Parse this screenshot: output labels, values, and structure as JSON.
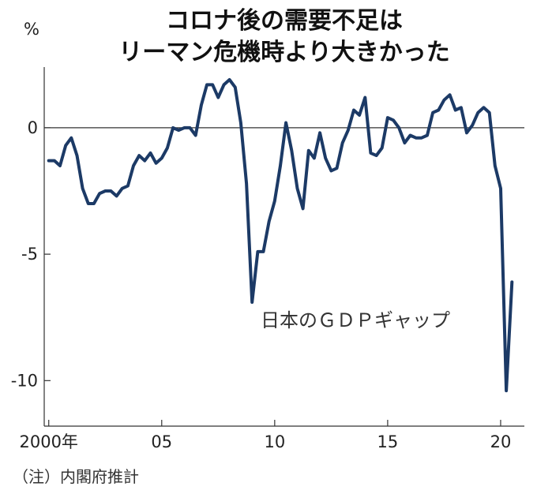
{
  "title_lines": [
    "コロナ後の需要不足は",
    "リーマン危機時より大きかった"
  ],
  "note": "（注）内閣府推計",
  "chart_data": {
    "type": "line",
    "title": "コロナ後の需要不足はリーマン危機時より大きかった",
    "y_unit_label": "%",
    "ylim": [
      -11.8,
      2.4
    ],
    "xlim": [
      1999.8,
      2021.05
    ],
    "y_ticks": [
      {
        "value": 0,
        "label": "0"
      },
      {
        "value": -5,
        "label": "-5"
      },
      {
        "value": -10,
        "label": "-10"
      }
    ],
    "x_ticks": [
      {
        "value": 2000,
        "label": "2000年"
      },
      {
        "value": 2005,
        "label": "05"
      },
      {
        "value": 2010,
        "label": "10"
      },
      {
        "value": 2015,
        "label": "15"
      },
      {
        "value": 2020,
        "label": "20"
      }
    ],
    "zero_line": true,
    "grid": false,
    "series": [
      {
        "name": "日本のＧＤＰギャップ",
        "color": "#1c3a66",
        "points": [
          [
            2000.0,
            -1.3
          ],
          [
            2000.25,
            -1.3
          ],
          [
            2000.5,
            -1.5
          ],
          [
            2000.75,
            -0.7
          ],
          [
            2001.0,
            -0.4
          ],
          [
            2001.25,
            -1.1
          ],
          [
            2001.5,
            -2.4
          ],
          [
            2001.75,
            -3.0
          ],
          [
            2002.0,
            -3.0
          ],
          [
            2002.25,
            -2.6
          ],
          [
            2002.5,
            -2.5
          ],
          [
            2002.75,
            -2.5
          ],
          [
            2003.0,
            -2.7
          ],
          [
            2003.25,
            -2.4
          ],
          [
            2003.5,
            -2.3
          ],
          [
            2003.75,
            -1.5
          ],
          [
            2004.0,
            -1.1
          ],
          [
            2004.25,
            -1.3
          ],
          [
            2004.5,
            -1.0
          ],
          [
            2004.75,
            -1.4
          ],
          [
            2005.0,
            -1.2
          ],
          [
            2005.25,
            -0.8
          ],
          [
            2005.5,
            0.0
          ],
          [
            2005.75,
            -0.1
          ],
          [
            2006.0,
            0.0
          ],
          [
            2006.25,
            0.0
          ],
          [
            2006.5,
            -0.3
          ],
          [
            2006.75,
            0.9
          ],
          [
            2007.0,
            1.7
          ],
          [
            2007.25,
            1.7
          ],
          [
            2007.5,
            1.2
          ],
          [
            2007.75,
            1.7
          ],
          [
            2008.0,
            1.9
          ],
          [
            2008.25,
            1.6
          ],
          [
            2008.5,
            0.2
          ],
          [
            2008.75,
            -2.2
          ],
          [
            2009.0,
            -6.9
          ],
          [
            2009.25,
            -4.9
          ],
          [
            2009.5,
            -4.9
          ],
          [
            2009.75,
            -3.7
          ],
          [
            2010.0,
            -2.9
          ],
          [
            2010.25,
            -1.5
          ],
          [
            2010.5,
            0.2
          ],
          [
            2010.75,
            -0.9
          ],
          [
            2011.0,
            -2.4
          ],
          [
            2011.25,
            -3.2
          ],
          [
            2011.5,
            -0.9
          ],
          [
            2011.75,
            -1.2
          ],
          [
            2012.0,
            -0.2
          ],
          [
            2012.25,
            -1.2
          ],
          [
            2012.5,
            -1.7
          ],
          [
            2012.75,
            -1.6
          ],
          [
            2013.0,
            -0.6
          ],
          [
            2013.25,
            -0.1
          ],
          [
            2013.5,
            0.7
          ],
          [
            2013.75,
            0.5
          ],
          [
            2014.0,
            1.2
          ],
          [
            2014.25,
            -1.0
          ],
          [
            2014.5,
            -1.1
          ],
          [
            2014.75,
            -0.8
          ],
          [
            2015.0,
            0.4
          ],
          [
            2015.25,
            0.3
          ],
          [
            2015.5,
            0.0
          ],
          [
            2015.75,
            -0.6
          ],
          [
            2016.0,
            -0.3
          ],
          [
            2016.25,
            -0.4
          ],
          [
            2016.5,
            -0.4
          ],
          [
            2016.75,
            -0.3
          ],
          [
            2017.0,
            0.6
          ],
          [
            2017.25,
            0.7
          ],
          [
            2017.5,
            1.1
          ],
          [
            2017.75,
            1.3
          ],
          [
            2018.0,
            0.7
          ],
          [
            2018.25,
            0.8
          ],
          [
            2018.5,
            -0.2
          ],
          [
            2018.75,
            0.1
          ],
          [
            2019.0,
            0.6
          ],
          [
            2019.25,
            0.8
          ],
          [
            2019.5,
            0.6
          ],
          [
            2019.75,
            -1.5
          ],
          [
            2020.0,
            -2.4
          ],
          [
            2020.25,
            -10.4
          ],
          [
            2020.5,
            -6.1
          ]
        ]
      }
    ]
  }
}
